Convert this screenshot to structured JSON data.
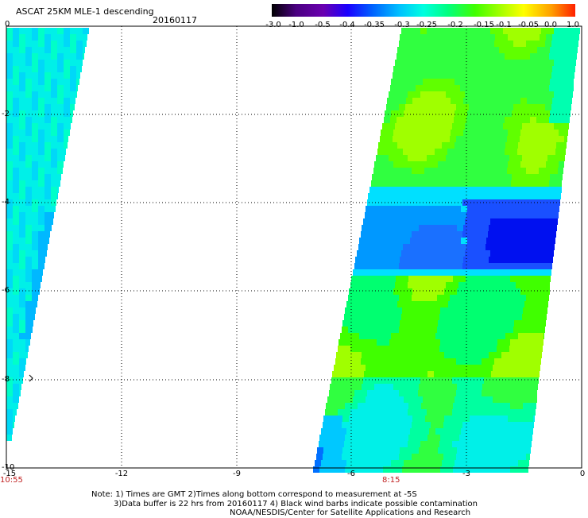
{
  "header": {
    "title": "ASCAT 25KM MLE-1 descending",
    "date": "20160117"
  },
  "colorbar": {
    "labels": [
      "-3.0",
      "-1.0",
      "-0.5",
      "-0.4",
      "-0.35",
      "-0.3",
      "-0.25",
      "-0.2",
      "-0.15",
      "-0.1",
      "-0.05",
      "0.0",
      "1.0"
    ],
    "colors": [
      "#000000",
      "#6a00b0",
      "#1a00ff",
      "#0060ff",
      "#00c0ff",
      "#00ffe0",
      "#00ff80",
      "#40ff00",
      "#a0ff00",
      "#ffff00",
      "#ffa000",
      "#ff3000"
    ]
  },
  "axes": {
    "x_ticks": [
      "-15",
      "-12",
      "-9",
      "-6",
      "-3",
      "0"
    ],
    "y_ticks": [
      "0",
      "-2",
      "-4",
      "-6",
      "-8",
      "-10"
    ]
  },
  "time_labels": [
    "10:55",
    "8:15"
  ],
  "notes": [
    "Note: 1) Times are GMT 2)Times along bottom correspond to measurement at -5S",
    "3)Data buffer is 22 hrs from 20160117 4) Black wind barbs indicate possible contamination",
    "NOAA/NESDIS/Center for Satellite Applications and Research"
  ]
}
